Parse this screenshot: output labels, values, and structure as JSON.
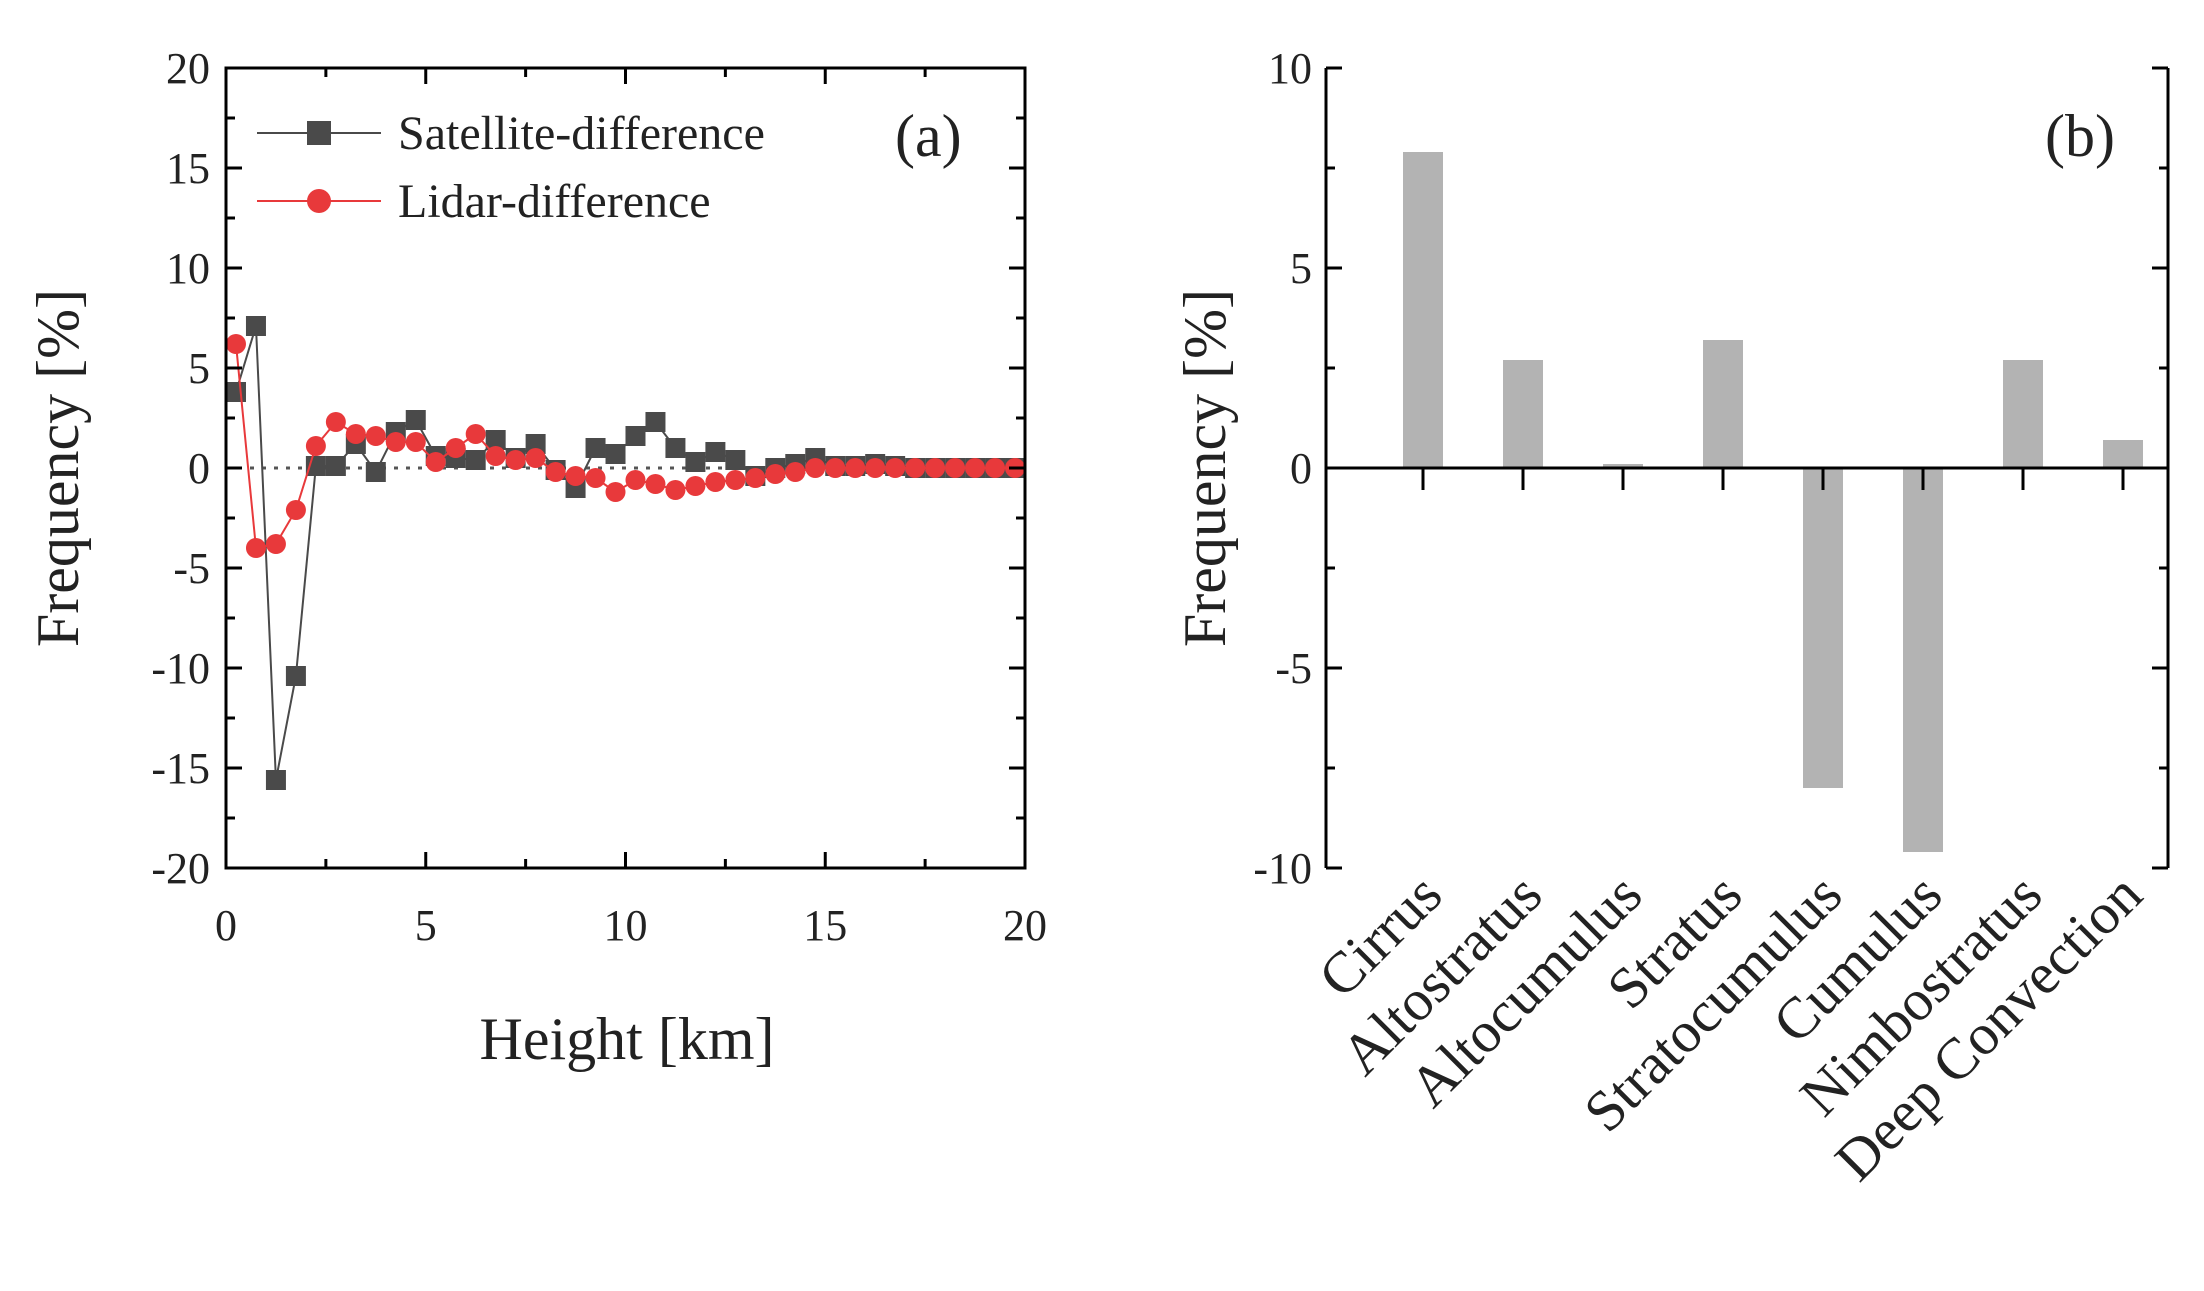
{
  "chart_data": [
    {
      "type": "line",
      "panel_label": "(a)",
      "xlabel": "Height [km]",
      "ylabel": "Frequency [%]",
      "xlim": [
        0,
        20
      ],
      "ylim": [
        -20,
        20
      ],
      "xticks": [
        0,
        5,
        10,
        15,
        20
      ],
      "yticks": [
        -20,
        -15,
        -10,
        -5,
        0,
        5,
        10,
        15,
        20
      ],
      "xtick_labels": [
        "0",
        "5",
        "10",
        "15",
        "20"
      ],
      "ytick_labels": [
        "-20",
        "-15",
        "-10",
        "-5",
        "0",
        "5",
        "10",
        "15",
        "20"
      ],
      "zero_line": "dotted",
      "legend_position": "top-left",
      "series": [
        {
          "name": "Satellite-difference",
          "marker": "square",
          "color": "#4a4a4a",
          "x": [
            0.25,
            0.75,
            1.25,
            1.75,
            2.25,
            2.75,
            3.25,
            3.75,
            4.25,
            4.75,
            5.25,
            5.75,
            6.25,
            6.75,
            7.25,
            7.75,
            8.25,
            8.75,
            9.25,
            9.75,
            10.25,
            10.75,
            11.25,
            11.75,
            12.25,
            12.75,
            13.25,
            13.75,
            14.25,
            14.75,
            15.25,
            15.75,
            16.25,
            16.75,
            17.25,
            17.75,
            18.25,
            18.75,
            19.25,
            19.75
          ],
          "y": [
            3.8,
            7.1,
            -15.6,
            -10.4,
            0.1,
            0.1,
            1.2,
            -0.2,
            1.8,
            2.4,
            0.6,
            0.5,
            0.4,
            1.4,
            0.5,
            1.2,
            -0.1,
            -1.0,
            1.0,
            0.7,
            1.6,
            2.3,
            1.0,
            0.3,
            0.8,
            0.4,
            -0.4,
            0.0,
            0.2,
            0.5,
            0.1,
            0.1,
            0.2,
            0.1,
            0.0,
            0.0,
            0.0,
            0.0,
            0.0,
            0.0
          ]
        },
        {
          "name": "Lidar-difference",
          "marker": "circle",
          "color": "#e8393b",
          "x": [
            0.25,
            0.75,
            1.25,
            1.75,
            2.25,
            2.75,
            3.25,
            3.75,
            4.25,
            4.75,
            5.25,
            5.75,
            6.25,
            6.75,
            7.25,
            7.75,
            8.25,
            8.75,
            9.25,
            9.75,
            10.25,
            10.75,
            11.25,
            11.75,
            12.25,
            12.75,
            13.25,
            13.75,
            14.25,
            14.75,
            15.25,
            15.75,
            16.25,
            16.75,
            17.25,
            17.75,
            18.25,
            18.75,
            19.25,
            19.75
          ],
          "y": [
            6.2,
            -4.0,
            -3.8,
            -2.1,
            1.1,
            2.3,
            1.7,
            1.6,
            1.3,
            1.3,
            0.3,
            1.0,
            1.7,
            0.6,
            0.4,
            0.5,
            -0.2,
            -0.4,
            -0.5,
            -1.2,
            -0.6,
            -0.8,
            -1.1,
            -0.9,
            -0.7,
            -0.6,
            -0.5,
            -0.3,
            -0.2,
            0.0,
            0.0,
            0.0,
            0.0,
            0.0,
            0.0,
            0.0,
            0.0,
            0.0,
            0.0,
            0.0
          ]
        }
      ]
    },
    {
      "type": "bar",
      "panel_label": "(b)",
      "xlabel": "",
      "ylabel": "Frequency [%]",
      "ylim": [
        -10,
        10
      ],
      "yticks": [
        -10,
        -5,
        0,
        5,
        10
      ],
      "ytick_labels": [
        "-10",
        "-5",
        "0",
        "5",
        "10"
      ],
      "bar_color": "#b3b3b3",
      "categories": [
        "Cirrus",
        "Altostratus",
        "Altocumulus",
        "Stratus",
        "Stratocumulus",
        "Cumulus",
        "Nimbostratus",
        "Deep Convection"
      ],
      "values": [
        7.9,
        2.7,
        0.1,
        3.2,
        -8.0,
        -9.6,
        2.7,
        0.7
      ]
    }
  ]
}
